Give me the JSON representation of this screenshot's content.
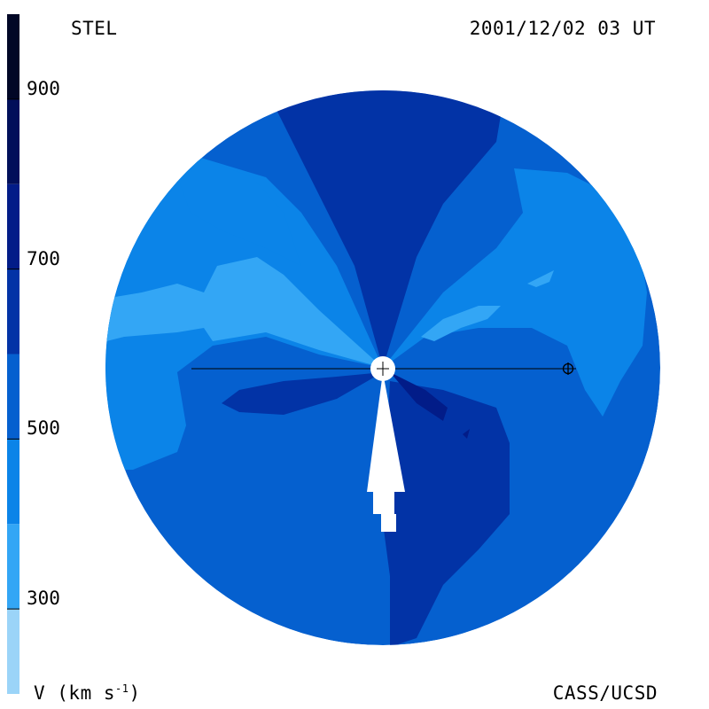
{
  "header": {
    "observatory": "STEL",
    "datetime": "2001/12/02 03 UT"
  },
  "footer": {
    "unit_prefix": "V (km s",
    "unit_exp": "-1",
    "unit_suffix": ")",
    "institution": "CASS/UCSD"
  },
  "colorbar": {
    "min": 200,
    "max": 1000,
    "tick_labels": [
      "900",
      "700",
      "500",
      "300"
    ],
    "tick_values": [
      900,
      700,
      500,
      300
    ],
    "bands": [
      {
        "from": 200,
        "to": 300,
        "color": "#9bd4f8"
      },
      {
        "from": 300,
        "to": 400,
        "color": "#33a6f5"
      },
      {
        "from": 400,
        "to": 500,
        "color": "#0b84e8"
      },
      {
        "from": 500,
        "to": 600,
        "color": "#0560cf"
      },
      {
        "from": 600,
        "to": 700,
        "color": "#0233a6"
      },
      {
        "from": 700,
        "to": 800,
        "color": "#021c88"
      },
      {
        "from": 800,
        "to": 900,
        "color": "#010f5a"
      },
      {
        "from": 900,
        "to": 1000,
        "color": "#010726"
      }
    ]
  },
  "map": {
    "background_color": "#0560cf",
    "markers": [
      "sun-marker",
      "earth-marker"
    ]
  }
}
